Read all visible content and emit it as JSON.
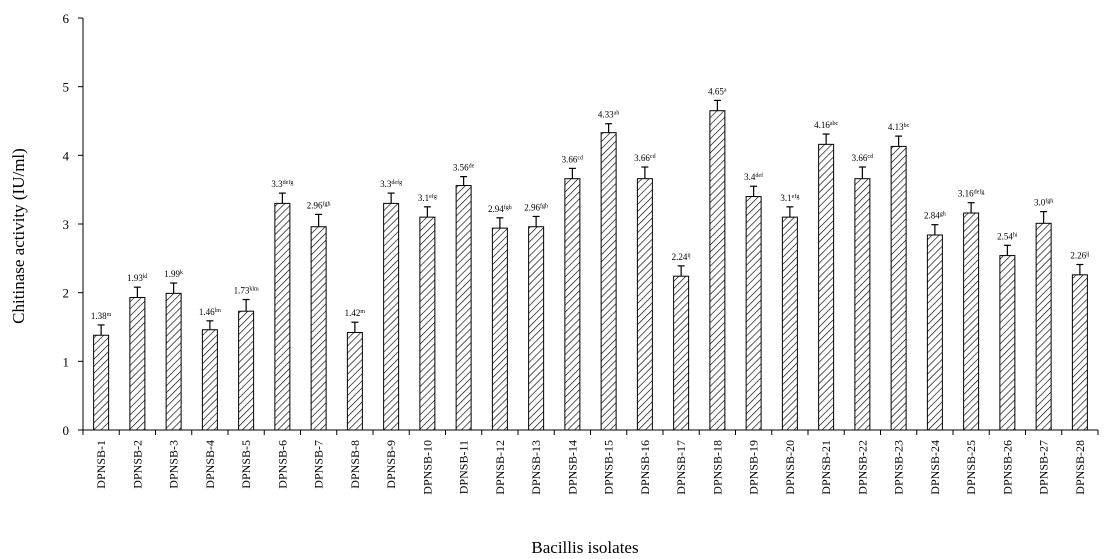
{
  "chart_data": {
    "type": "bar",
    "title": "",
    "xlabel": "Bacillis isolates",
    "ylabel": "Chitinase activity (IU/ml)",
    "ylim": [
      0,
      6
    ],
    "yticks": [
      0,
      1,
      2,
      3,
      4,
      5,
      6
    ],
    "grid": false,
    "legend": "none",
    "bar_fill": "diagonal-hatch",
    "categories": [
      "DPNSB-1",
      "DPNSB-2",
      "DPNSB-3",
      "DPNSB-4",
      "DPNSB-5",
      "DPNSB-6",
      "DPNSB-7",
      "DPNSB-8",
      "DPNSB-9",
      "DPNSB-10",
      "DPNSB-11",
      "DPNSB-12",
      "DPNSB-13",
      "DPNSB-14",
      "DPNSB-15",
      "DPNSB-16",
      "DPNSB-17",
      "DPNSB-18",
      "DPNSB-19",
      "DPNSB-20",
      "DPNSB-21",
      "DPNSB-22",
      "DPNSB-23",
      "DPNSB-24",
      "DPNSB-25",
      "DPNSB-26",
      "DPNSB-27",
      "DPNSB-28"
    ],
    "values": [
      1.38,
      1.93,
      1.99,
      1.46,
      1.73,
      3.3,
      2.96,
      1.42,
      3.3,
      3.1,
      3.56,
      2.94,
      2.96,
      3.66,
      4.33,
      3.66,
      2.24,
      4.65,
      3.4,
      3.1,
      4.16,
      3.66,
      4.13,
      2.84,
      3.16,
      2.54,
      3.01,
      2.26
    ],
    "errors": [
      0.15,
      0.15,
      0.15,
      0.13,
      0.17,
      0.15,
      0.18,
      0.15,
      0.15,
      0.15,
      0.13,
      0.15,
      0.15,
      0.15,
      0.13,
      0.17,
      0.15,
      0.15,
      0.15,
      0.15,
      0.15,
      0.17,
      0.15,
      0.15,
      0.15,
      0.15,
      0.17,
      0.15
    ],
    "data_labels": [
      {
        "value": "1.38",
        "sup": "m"
      },
      {
        "value": "1.93",
        "sup": "kl"
      },
      {
        "value": "1.99",
        "sup": "k"
      },
      {
        "value": "1.46",
        "sup": "lm"
      },
      {
        "value": "1.73",
        "sup": "klm"
      },
      {
        "value": "3.3",
        "sup": "defg"
      },
      {
        "value": "2.96",
        "sup": "fgh"
      },
      {
        "value": "1.42",
        "sup": "m"
      },
      {
        "value": "3.3",
        "sup": "defg"
      },
      {
        "value": "3.1",
        "sup": "efg"
      },
      {
        "value": "3.56",
        "sup": "de"
      },
      {
        "value": "2.94",
        "sup": "fgh"
      },
      {
        "value": "2.96",
        "sup": "fgh"
      },
      {
        "value": "3.66",
        "sup": "cd"
      },
      {
        "value": "4.33",
        "sup": "ab"
      },
      {
        "value": "3.66",
        "sup": "cd"
      },
      {
        "value": "2.24",
        "sup": "ij"
      },
      {
        "value": "4.65",
        "sup": "a"
      },
      {
        "value": "3.4",
        "sup": "def"
      },
      {
        "value": "3.1",
        "sup": "efg"
      },
      {
        "value": "4.16",
        "sup": "abc"
      },
      {
        "value": "3.66",
        "sup": "cd"
      },
      {
        "value": "4.13",
        "sup": "bc"
      },
      {
        "value": "2.84",
        "sup": "gh"
      },
      {
        "value": "3.16",
        "sup": "defg"
      },
      {
        "value": "2.54",
        "sup": "hi"
      },
      {
        "value": "3.0",
        "sup": "fgh"
      },
      {
        "value": "2.26",
        "sup": "ij"
      }
    ]
  }
}
